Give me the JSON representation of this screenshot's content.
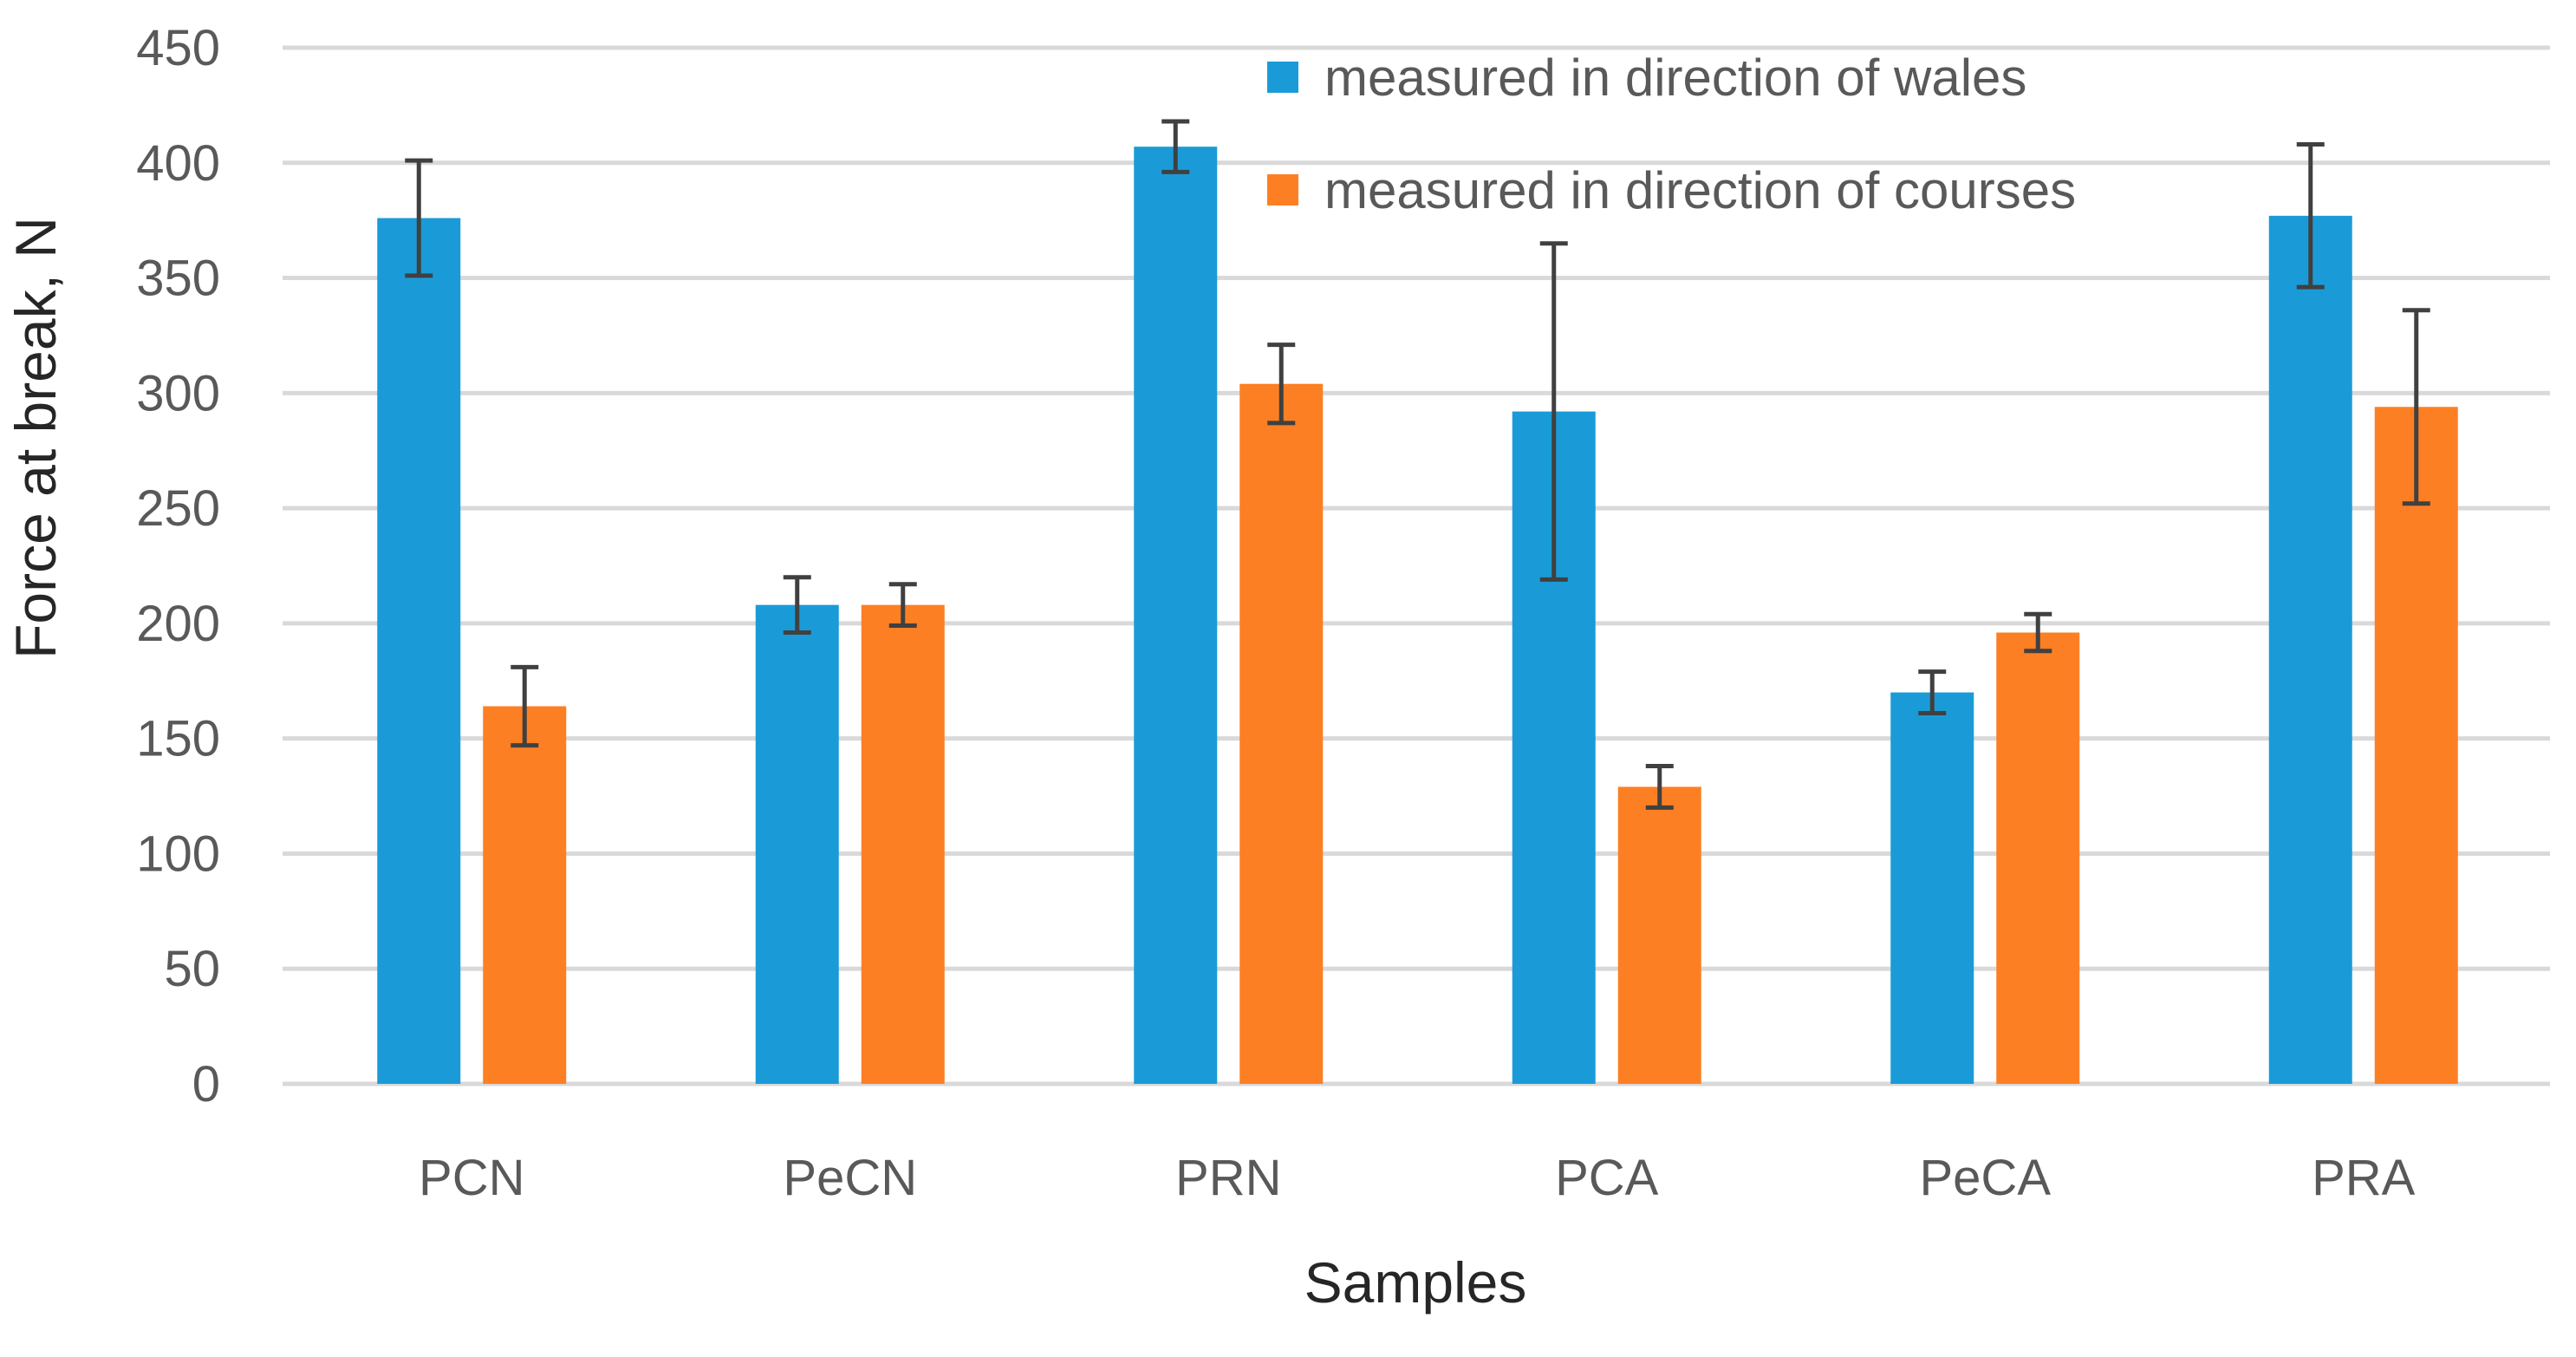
{
  "chart_data": {
    "type": "bar",
    "title": "",
    "xlabel": "Samples",
    "ylabel": "Force at break, N",
    "ylim": [
      0,
      450
    ],
    "yticks": [
      0,
      50,
      100,
      150,
      200,
      250,
      300,
      350,
      400,
      450
    ],
    "grid": true,
    "legend_position": "top-right",
    "categories": [
      "PCN",
      "PeCN",
      "PRN",
      "PCA",
      "PeCA",
      "PRA"
    ],
    "series": [
      {
        "name": "measured in direction of wales",
        "color": "#1a9bd7",
        "values": [
          376,
          208,
          407,
          292,
          170,
          377
        ],
        "errors": [
          25,
          12,
          11,
          73,
          9,
          31
        ]
      },
      {
        "name": "measured in direction of courses",
        "color": "#fd7f23",
        "values": [
          164,
          208,
          304,
          129,
          196,
          294
        ],
        "errors": [
          17,
          9,
          17,
          9,
          8,
          42
        ]
      }
    ]
  }
}
